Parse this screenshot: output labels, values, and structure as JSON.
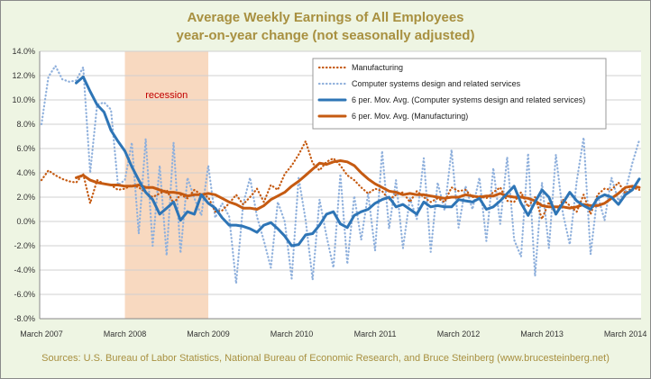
{
  "chart_data": {
    "type": "line",
    "title": "Average Weekly Earnings of All Employees",
    "subtitle": "year-on-year change (not seasonally adjusted)",
    "source": "Sources: U.S. Bureau of Labor Statistics, National Bureau of Economic Research, and Bruce Steinberg (www.brucesteinberg.net)",
    "annotation": "recession",
    "recession_x": [
      12,
      24
    ],
    "ylim": [
      -8,
      14
    ],
    "yticks": [
      "14.0%",
      "12.0%",
      "10.0%",
      "8.0%",
      "6.0%",
      "4.0%",
      "2.0%",
      "0.0%",
      "-2.0%",
      "-4.0%",
      "-6.0%",
      "-8.0%"
    ],
    "xlim": [
      0,
      86
    ],
    "xticks": [
      {
        "i": 0,
        "label": "March 2007"
      },
      {
        "i": 12,
        "label": "March 2008"
      },
      {
        "i": 24,
        "label": "March 2009"
      },
      {
        "i": 36,
        "label": "March 2010"
      },
      {
        "i": 48,
        "label": "March 2011"
      },
      {
        "i": 60,
        "label": "March 2012"
      },
      {
        "i": 72,
        "label": "March 2013"
      },
      {
        "i": 84,
        "label": "March 2014"
      }
    ],
    "grid": "horizontal",
    "legend": "top-right",
    "series": [
      {
        "name": "Manufacturing",
        "style": "dotted",
        "color": "#c55a11",
        "values": [
          3.4,
          4.2,
          3.8,
          3.5,
          3.3,
          3.2,
          3.9,
          1.5,
          3.4,
          3.1,
          3.0,
          2.6,
          2.7,
          3.0,
          2.8,
          2.4,
          2.0,
          2.3,
          2.6,
          1.5,
          2.2,
          1.9,
          2.6,
          2.2,
          2.0,
          0.8,
          0.9,
          1.5,
          2.2,
          1.4,
          2.0,
          2.7,
          1.6,
          3.0,
          2.6,
          3.9,
          4.6,
          5.5,
          6.6,
          4.8,
          4.2,
          4.9,
          5.2,
          4.6,
          3.8,
          3.4,
          2.8,
          2.3,
          2.7,
          2.5,
          1.8,
          2.2,
          2.4,
          1.6,
          2.5,
          2.0,
          1.6,
          1.9,
          1.6,
          2.8,
          2.5,
          2.6,
          2.0,
          2.1,
          1.9,
          2.4,
          2.8,
          1.7,
          1.6,
          2.4,
          1.2,
          2.0,
          0.2,
          1.6,
          0.6,
          1.8,
          1.3,
          0.8,
          2.2,
          0.6,
          2.2,
          2.7,
          2.6,
          3.2,
          2.3,
          2.8,
          2.6
        ]
      },
      {
        "name": "Computer systems design and related services",
        "style": "dotted",
        "color": "#8fb0dc",
        "values": [
          8.0,
          11.9,
          12.8,
          11.7,
          11.5,
          11.6,
          12.7,
          4.0,
          9.6,
          9.8,
          9.2,
          3.0,
          3.4,
          6.5,
          -1.0,
          6.8,
          -2.0,
          4.6,
          -2.8,
          6.5,
          -2.6,
          3.6,
          1.9,
          0.5,
          4.6,
          0.3,
          1.5,
          0.4,
          -5.1,
          1.4,
          3.6,
          0.4,
          -1.6,
          -3.8,
          1.6,
          0.0,
          -4.7,
          3.6,
          0.1,
          -4.8,
          1.8,
          -1.2,
          -3.8,
          3.9,
          -3.5,
          2.1,
          -1.5,
          2.3,
          -2.4,
          5.8,
          -0.6,
          3.4,
          -2.2,
          1.9,
          0.2,
          5.2,
          -2.5,
          3.2,
          0.9,
          5.9,
          -0.5,
          2.9,
          1.0,
          3.6,
          -1.6,
          4.4,
          -0.2,
          5.3,
          -1.5,
          -2.9,
          5.6,
          -4.5,
          3.2,
          -2.2,
          5.5,
          0.7,
          -1.9,
          3.3,
          6.9,
          -2.7,
          2.2,
          0.1,
          3.6,
          1.7,
          2.5,
          4.8,
          6.7
        ]
      },
      {
        "name": "6 per. Mov. Avg. (Computer systems design and related services)",
        "style": "solid",
        "color": "#2e75b6",
        "values": [
          null,
          null,
          null,
          null,
          null,
          11.4,
          11.9,
          10.7,
          9.6,
          9.0,
          7.5,
          6.6,
          5.8,
          4.5,
          3.4,
          2.4,
          1.8,
          0.6,
          1.1,
          1.6,
          0.1,
          0.8,
          0.6,
          2.2,
          1.5,
          1.1,
          0.3,
          -0.3,
          -0.3,
          -0.4,
          -0.6,
          -0.9,
          -0.3,
          -0.1,
          -0.6,
          -1.2,
          -2.0,
          -1.9,
          -1.1,
          -1.0,
          -0.3,
          0.6,
          0.8,
          -0.2,
          -0.5,
          0.5,
          0.8,
          1.0,
          1.5,
          1.8,
          2.0,
          1.2,
          1.4,
          1.0,
          0.6,
          1.6,
          1.2,
          1.3,
          1.2,
          1.2,
          1.8,
          1.7,
          1.6,
          1.9,
          1.0,
          1.2,
          1.7,
          2.3,
          2.9,
          1.5,
          0.5,
          1.6,
          2.6,
          2.0,
          0.6,
          1.5,
          2.4,
          1.7,
          1.3,
          1.0,
          1.9,
          2.2,
          2.0,
          1.4,
          2.2,
          2.6,
          3.5
        ]
      },
      {
        "name": "6 per. Mov. Avg. (Manufacturing)",
        "style": "solid",
        "color": "#c55a11",
        "values": [
          null,
          null,
          null,
          null,
          null,
          3.6,
          3.8,
          3.4,
          3.2,
          3.1,
          3.0,
          3.0,
          2.9,
          2.9,
          3.0,
          2.8,
          2.8,
          2.6,
          2.4,
          2.4,
          2.3,
          2.1,
          2.2,
          2.2,
          2.3,
          2.2,
          1.9,
          1.6,
          1.4,
          1.1,
          1.1,
          1.0,
          1.3,
          1.8,
          2.1,
          2.4,
          2.9,
          3.3,
          3.8,
          4.3,
          4.8,
          4.7,
          4.9,
          5.0,
          4.9,
          4.6,
          4.0,
          3.5,
          3.1,
          2.8,
          2.5,
          2.4,
          2.2,
          2.3,
          2.2,
          2.2,
          2.1,
          2.0,
          1.9,
          2.0,
          2.0,
          2.2,
          2.1,
          2.0,
          2.1,
          2.1,
          2.3,
          2.1,
          2.0,
          2.0,
          1.9,
          1.7,
          1.3,
          1.2,
          1.2,
          1.2,
          1.1,
          1.2,
          1.4,
          1.3,
          1.3,
          1.5,
          1.9,
          2.3,
          2.8,
          2.9,
          2.8
        ]
      }
    ]
  }
}
